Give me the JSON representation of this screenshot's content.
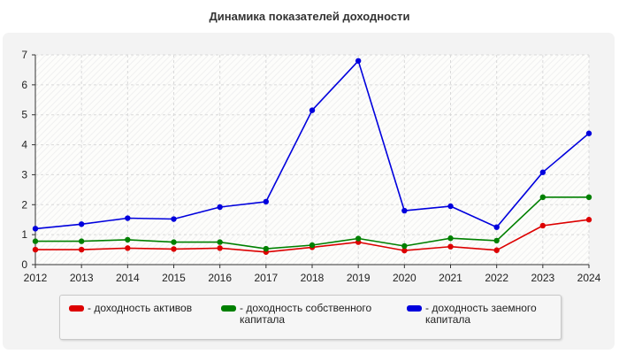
{
  "chart_data": {
    "type": "line",
    "title": "Динамика показателей доходности",
    "xlabel": "",
    "ylabel": "",
    "x": [
      "2012",
      "2013",
      "2014",
      "2015",
      "2016",
      "2017",
      "2018",
      "2019",
      "2020",
      "2021",
      "2022",
      "2023",
      "2024"
    ],
    "ylim": [
      0,
      7
    ],
    "yticks": [
      "0",
      "1",
      "2",
      "3",
      "4",
      "5",
      "6",
      "7"
    ],
    "grid": true,
    "legend_position": "bottom",
    "series": [
      {
        "name": "доходность активов",
        "color": "#dd0000",
        "values": [
          0.5,
          0.5,
          0.55,
          0.52,
          0.55,
          0.42,
          0.58,
          0.75,
          0.47,
          0.6,
          0.48,
          1.3,
          1.5
        ]
      },
      {
        "name": "доходность собственного капитала",
        "color": "#008000",
        "values": [
          0.78,
          0.78,
          0.83,
          0.75,
          0.75,
          0.53,
          0.65,
          0.87,
          0.62,
          0.88,
          0.8,
          2.25,
          2.25
        ]
      },
      {
        "name": "доходность заемного капитала",
        "color": "#0000dd",
        "values": [
          1.2,
          1.35,
          1.55,
          1.52,
          1.92,
          2.1,
          5.15,
          6.8,
          1.8,
          1.95,
          1.25,
          3.08,
          4.38
        ]
      }
    ]
  },
  "legend": {
    "items": [
      {
        "label": "- доходность активов",
        "color": "#dd0000"
      },
      {
        "label": "- доходность собственного капитала",
        "color": "#008000"
      },
      {
        "label": "- доходность заемного капитала",
        "color": "#0000dd"
      }
    ]
  }
}
